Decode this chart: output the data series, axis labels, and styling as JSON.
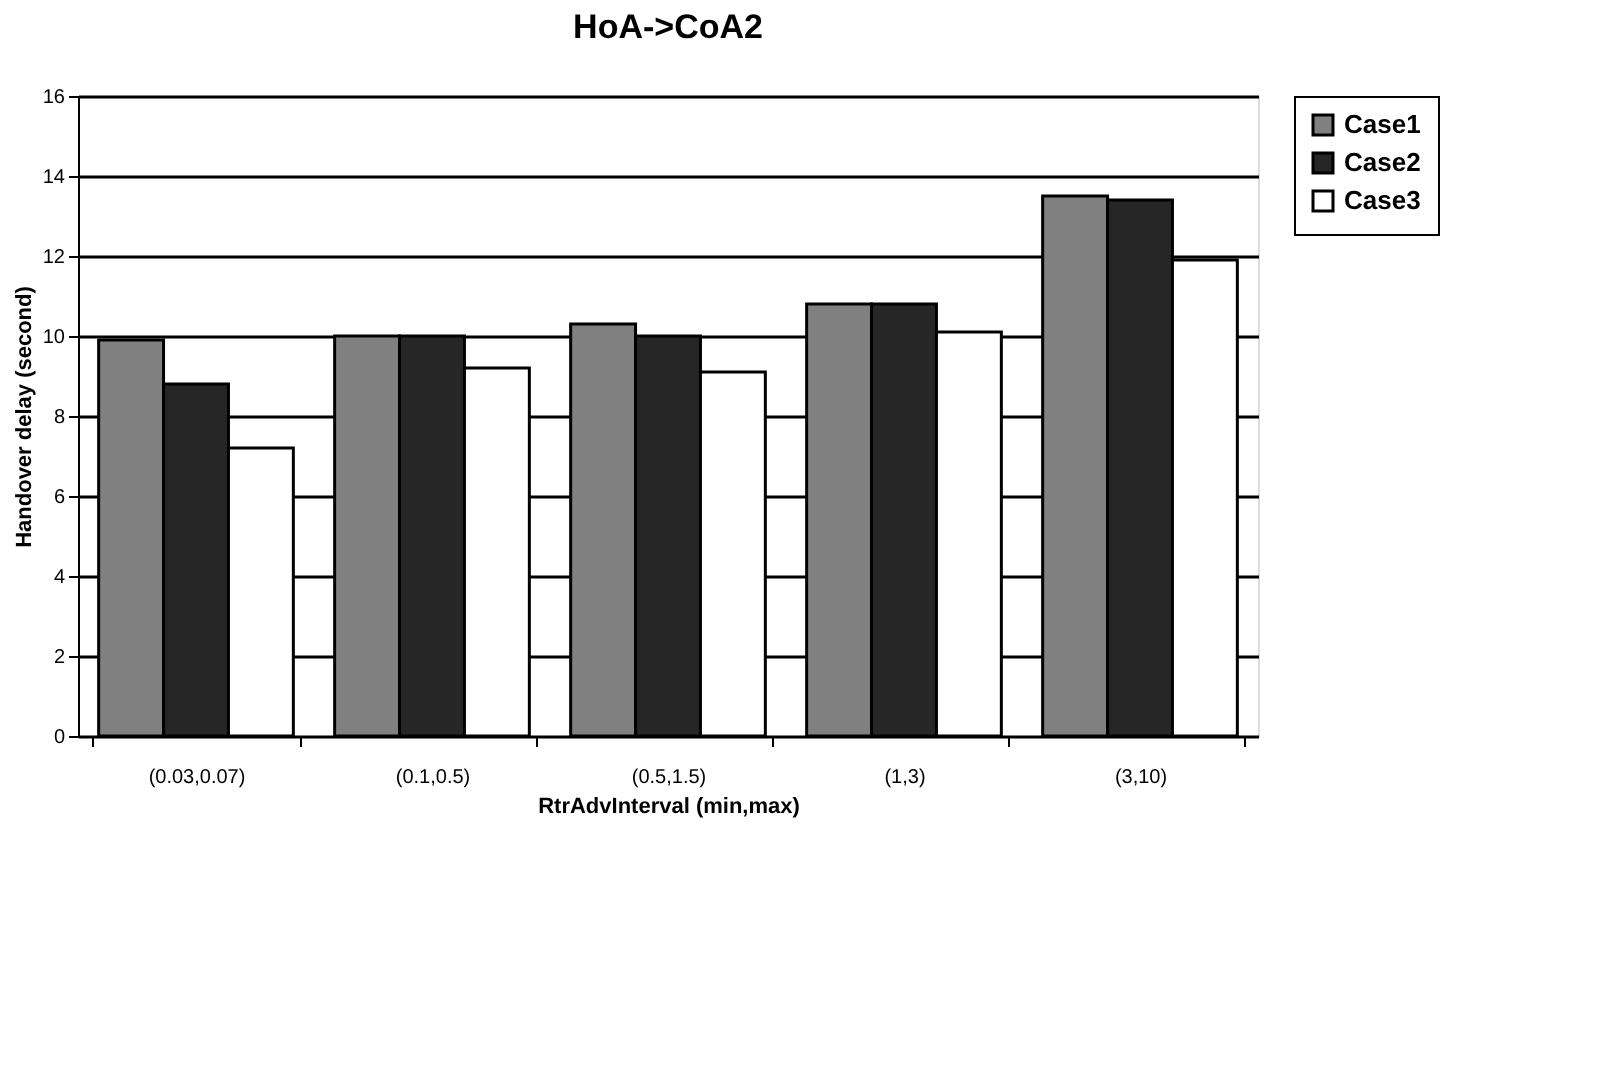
{
  "chart_data": {
    "type": "bar",
    "title": "HoA->CoA2",
    "xlabel": "RtrAdvInterval (min,max)",
    "ylabel": "Handover delay (second)",
    "categories": [
      "(0.03,0.07)",
      "(0.1,0.5)",
      "(0.5,1.5)",
      "(1,3)",
      "(3,10)"
    ],
    "series": [
      {
        "name": "Case1",
        "color": "#808080",
        "values": [
          9.9,
          10.0,
          10.3,
          10.8,
          13.5
        ]
      },
      {
        "name": "Case2",
        "color": "#262626",
        "values": [
          8.8,
          10.0,
          10.0,
          10.8,
          13.4
        ]
      },
      {
        "name": "Case3",
        "color": "#ffffff",
        "values": [
          7.2,
          9.2,
          9.1,
          10.1,
          11.9
        ]
      }
    ],
    "ylim": [
      0,
      16
    ],
    "yticks": [
      0,
      2,
      4,
      6,
      8,
      10,
      12,
      14,
      16
    ],
    "grid": "y",
    "legend": "right"
  }
}
